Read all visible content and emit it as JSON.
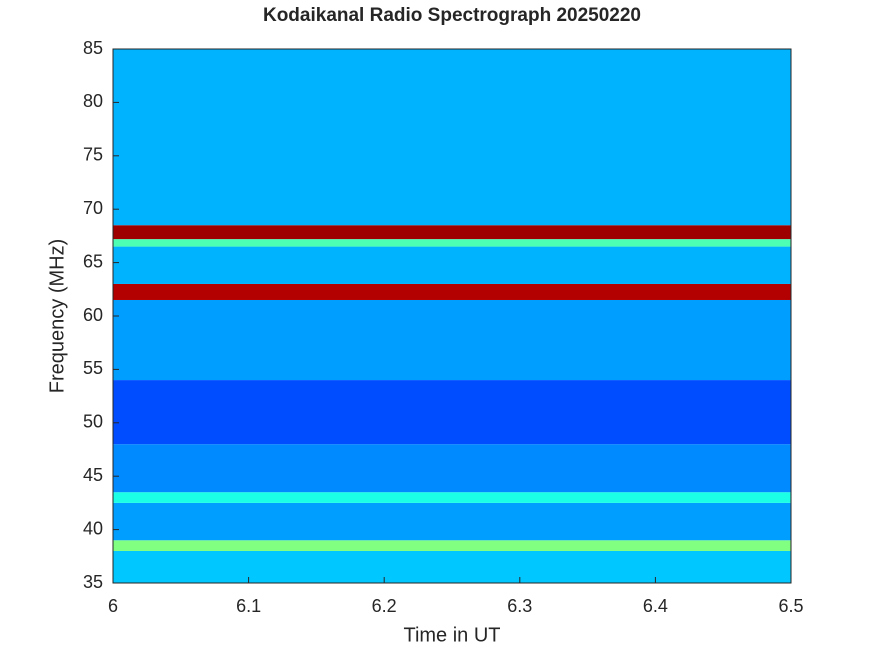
{
  "chart_data": {
    "type": "heatmap",
    "title": "Kodaikanal Radio Spectrograph  20250220",
    "x_label": "Time in UT",
    "y_label": "Frequency (MHz)",
    "colormap": "jet",
    "xlim": [
      6,
      6.5
    ],
    "xticks": [
      6,
      6.1,
      6.2,
      6.3,
      6.4,
      6.5
    ],
    "ylim": [
      35,
      85
    ],
    "yticks": [
      35,
      40,
      45,
      50,
      55,
      60,
      65,
      70,
      75,
      80,
      85
    ],
    "y_edges": [
      35,
      38,
      39,
      42.5,
      43.5,
      48,
      54,
      61.5,
      63,
      66.5,
      67.2,
      68.5,
      85
    ],
    "values": [
      0.32,
      0.5,
      0.28,
      0.4,
      0.26,
      0.2,
      0.28,
      0.95,
      0.3,
      0.45,
      0.97,
      0.3
    ]
  }
}
